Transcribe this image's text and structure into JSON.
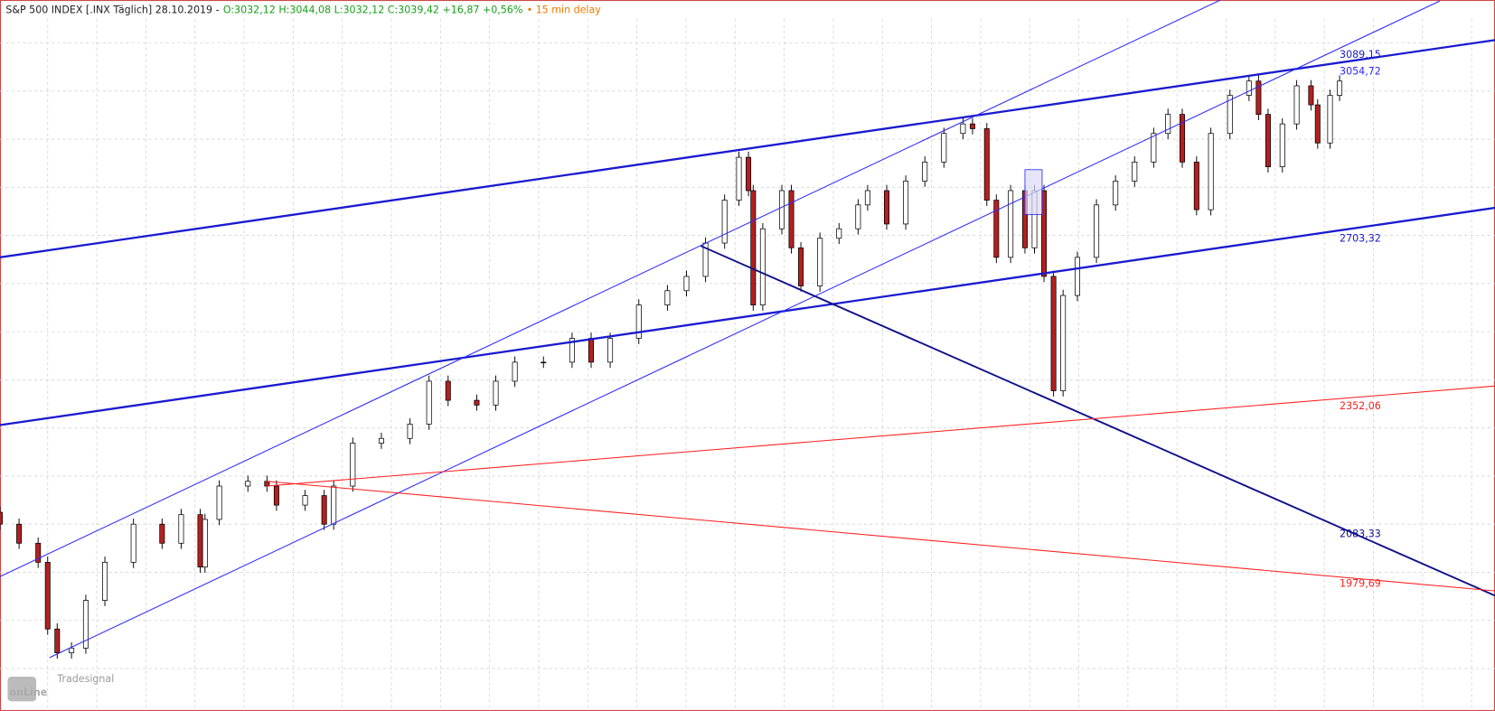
{
  "header": {
    "instrument": "S&P 500 INDEX [.INX Täglich] 28.10.2019 -",
    "quote": "O:3032,12 H:3044,08 L:3032,12 C:3039,42 +16,87 +0,56%",
    "delay": "• 15 min delay"
  },
  "logo": {
    "small": "Tradesignal",
    "main": "onLine"
  },
  "chart_data": {
    "type": "candlestick",
    "up_color": "#ffffff",
    "down_color": "#b22020",
    "grid": true,
    "xlim": [
      0,
      1568
    ],
    "ylim": [
      1713,
      3205
    ],
    "x": [
      0,
      20,
      40,
      50,
      60,
      75,
      90,
      110,
      140,
      170,
      190,
      210,
      215,
      230,
      260,
      280,
      290,
      320,
      340,
      350,
      370,
      400,
      430,
      450,
      470,
      500,
      520,
      540,
      570,
      600,
      620,
      640,
      670,
      700,
      720,
      740,
      760,
      775,
      785,
      790,
      800,
      820,
      830,
      840,
      860,
      880,
      900,
      910,
      930,
      950,
      970,
      990,
      1010,
      1020,
      1035,
      1045,
      1060,
      1075,
      1085,
      1095,
      1105,
      1115,
      1130,
      1150,
      1170,
      1190,
      1210,
      1225,
      1240,
      1255,
      1270,
      1290,
      1310,
      1320,
      1330,
      1345,
      1360,
      1375,
      1382,
      1395,
      1405
    ],
    "open": [
      2130,
      2105,
      2065,
      2025,
      1885,
      1835,
      1845,
      1945,
      2025,
      2105,
      2065,
      2125,
      2015,
      2115,
      2185,
      2195,
      2185,
      2145,
      2165,
      2105,
      2185,
      2275,
      2285,
      2315,
      2405,
      2365,
      2355,
      2405,
      2445,
      2445,
      2495,
      2445,
      2495,
      2565,
      2595,
      2625,
      2695,
      2785,
      2875,
      2805,
      2565,
      2725,
      2805,
      2685,
      2605,
      2705,
      2725,
      2775,
      2805,
      2735,
      2825,
      2865,
      2925,
      2945,
      2935,
      2785,
      2665,
      2805,
      2685,
      2805,
      2625,
      2385,
      2585,
      2665,
      2775,
      2825,
      2865,
      2925,
      2965,
      2865,
      2765,
      2925,
      3005,
      3035,
      2965,
      2855,
      2945,
      3025,
      2985,
      2905,
      3005
    ],
    "high": [
      2142,
      2117,
      2077,
      2037,
      1897,
      1857,
      1957,
      2037,
      2117,
      2117,
      2137,
      2137,
      2127,
      2197,
      2207,
      2207,
      2197,
      2177,
      2177,
      2197,
      2287,
      2297,
      2327,
      2417,
      2417,
      2377,
      2417,
      2457,
      2457,
      2507,
      2507,
      2507,
      2577,
      2607,
      2637,
      2707,
      2797,
      2887,
      2887,
      2817,
      2737,
      2817,
      2817,
      2697,
      2717,
      2737,
      2787,
      2817,
      2817,
      2837,
      2877,
      2937,
      2957,
      2957,
      2947,
      2797,
      2817,
      2817,
      2817,
      2817,
      2637,
      2597,
      2677,
      2787,
      2837,
      2877,
      2937,
      2977,
      2977,
      2877,
      2937,
      3017,
      3047,
      3047,
      2977,
      2957,
      3037,
      3037,
      2997,
      3017,
      3047
    ],
    "low": [
      2093,
      2053,
      2013,
      1873,
      1823,
      1823,
      1833,
      1933,
      2013,
      2053,
      2053,
      2003,
      2003,
      2103,
      2173,
      2173,
      2133,
      2133,
      2093,
      2093,
      2173,
      2263,
      2273,
      2303,
      2353,
      2343,
      2343,
      2393,
      2433,
      2433,
      2433,
      2433,
      2483,
      2553,
      2583,
      2613,
      2683,
      2773,
      2793,
      2553,
      2553,
      2713,
      2673,
      2593,
      2593,
      2693,
      2713,
      2763,
      2723,
      2723,
      2813,
      2853,
      2913,
      2923,
      2773,
      2653,
      2653,
      2673,
      2673,
      2613,
      2373,
      2373,
      2573,
      2653,
      2763,
      2813,
      2853,
      2913,
      2853,
      2753,
      2753,
      2913,
      2993,
      2953,
      2843,
      2843,
      2933,
      2973,
      2893,
      2893,
      2993
    ],
    "close": [
      2105,
      2065,
      2025,
      1885,
      1835,
      1845,
      1945,
      2025,
      2105,
      2065,
      2125,
      2015,
      2115,
      2185,
      2195,
      2185,
      2145,
      2165,
      2105,
      2185,
      2275,
      2285,
      2315,
      2405,
      2365,
      2355,
      2405,
      2445,
      2445,
      2495,
      2445,
      2495,
      2565,
      2595,
      2625,
      2695,
      2785,
      2875,
      2805,
      2565,
      2725,
      2805,
      2685,
      2605,
      2705,
      2725,
      2775,
      2805,
      2735,
      2825,
      2865,
      2925,
      2945,
      2935,
      2785,
      2665,
      2805,
      2685,
      2805,
      2625,
      2385,
      2585,
      2665,
      2775,
      2825,
      2865,
      2925,
      2965,
      2865,
      2765,
      2925,
      3005,
      3035,
      2965,
      2855,
      2945,
      3025,
      2985,
      2905,
      3005,
      3035
    ],
    "lines": [
      {
        "color": "#1a1ad0",
        "width": 2.2,
        "start": [
          0,
          2665
        ],
        "end": [
          1568,
          3121
        ],
        "label": {
          "value": 3089.15,
          "label": "3089,15"
        }
      },
      {
        "color": "#1a1ad0",
        "width": 2.2,
        "start": [
          0,
          2313
        ],
        "end": [
          1568,
          2769
        ],
        "label": {
          "value": 2703.32,
          "label": "2703,32"
        }
      },
      {
        "color": "#2a2aff",
        "width": 1,
        "start": [
          0,
          1995
        ],
        "end": [
          1280,
          3205
        ]
      },
      {
        "color": "#2a2aff",
        "width": 1,
        "start": [
          52,
          1825
        ],
        "end": [
          1510,
          3203
        ],
        "label": {
          "value": 3054.72,
          "label": "3054,72"
        }
      },
      {
        "color": "#10108a",
        "width": 1.8,
        "start": [
          735,
          2689
        ],
        "end": [
          1568,
          1955
        ],
        "label": {
          "value": 2083.33,
          "label": "2083,33"
        }
      },
      {
        "color": "#ff2020",
        "width": 1,
        "start": [
          280,
          2185
        ],
        "end": [
          1568,
          2395
        ],
        "label": {
          "value": 2352.06,
          "label": "2352,06"
        }
      },
      {
        "color": "#ff2020",
        "width": 1,
        "start": [
          280,
          2195
        ],
        "end": [
          1568,
          1965
        ],
        "label": {
          "value": 1979.69,
          "label": "1979,69"
        }
      }
    ]
  }
}
